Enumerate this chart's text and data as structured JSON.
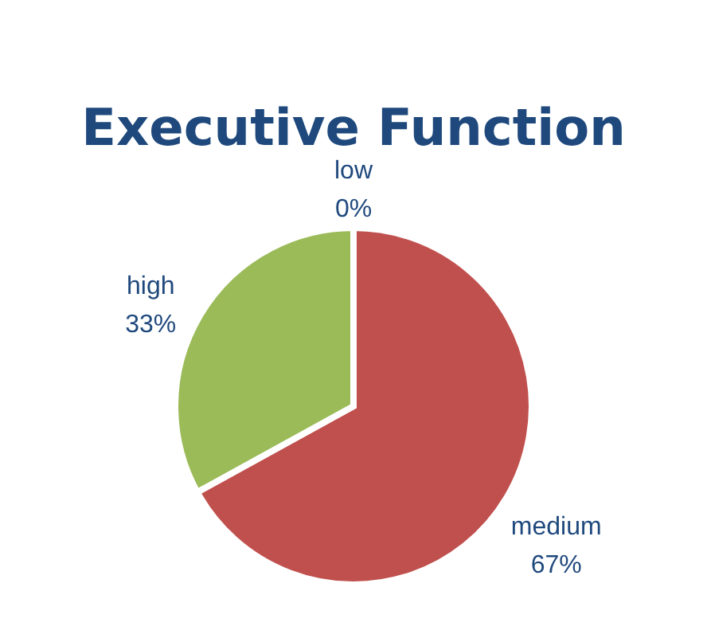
{
  "chart_data": {
    "type": "pie",
    "title": "Executive Function",
    "categories": [
      "low",
      "medium",
      "high"
    ],
    "values": [
      0,
      67,
      33
    ],
    "colors": [
      "#4f81bd",
      "#c0504d",
      "#9bbb59"
    ],
    "value_labels": [
      "0%",
      "67%",
      "33%"
    ]
  }
}
